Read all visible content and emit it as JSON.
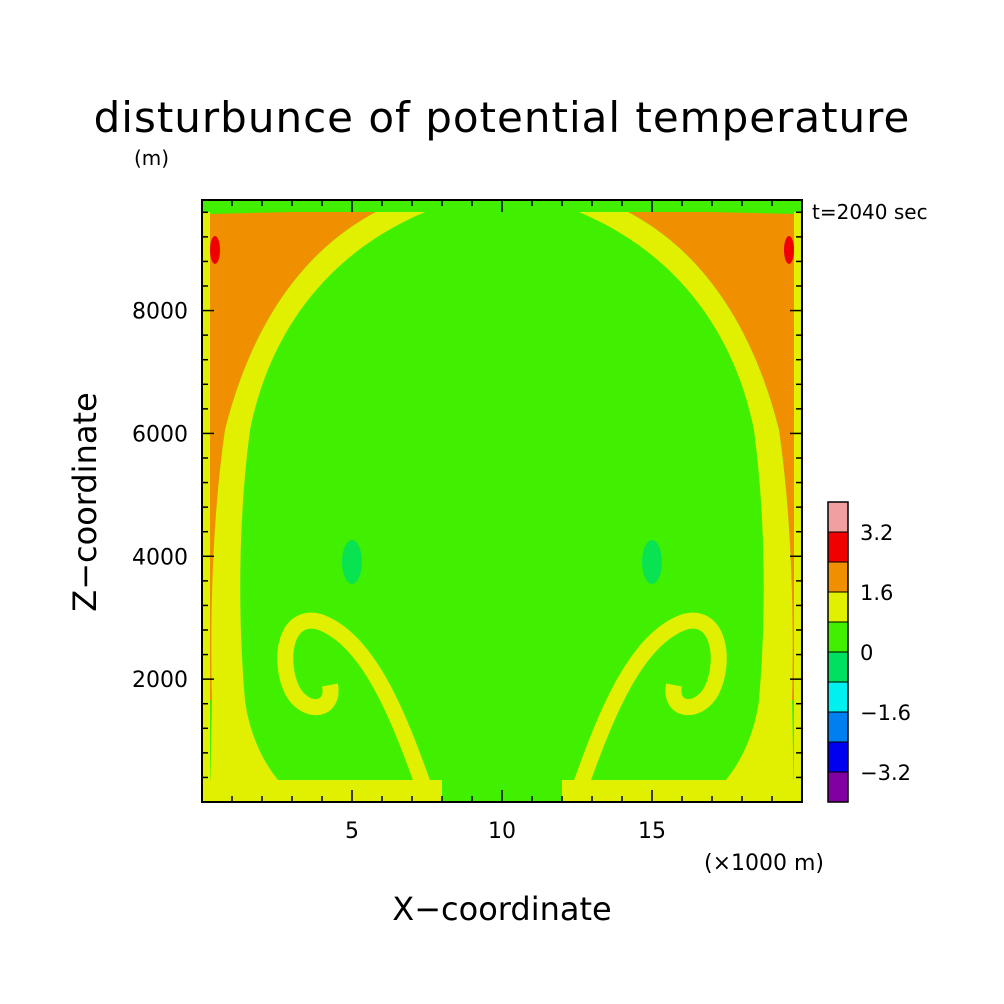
{
  "chart_data": {
    "type": "heatmap",
    "title": "disturbunce of potential temperature",
    "subtitle": "(m)",
    "time_label": "t=2040 sec",
    "xlabel": "X−coordinate",
    "ylabel": "Z−coordinate",
    "x_unit_label": "(×1000 m)",
    "xlim": [
      0,
      20
    ],
    "ylim": [
      0,
      9800
    ],
    "x_ticks": [
      5,
      10,
      15
    ],
    "x_tick_labels": [
      "5",
      "10",
      "15"
    ],
    "y_ticks": [
      2000,
      4000,
      6000,
      8000
    ],
    "y_tick_labels": [
      "2000",
      "4000",
      "6000",
      "8000"
    ],
    "colorbar": {
      "levels": [
        -4.0,
        -3.2,
        -2.4,
        -1.6,
        -0.8,
        0,
        0.8,
        1.6,
        2.4,
        3.2,
        4.0
      ],
      "colors": [
        "#8000a0",
        "#0000f0",
        "#0080f0",
        "#00f0f0",
        "#00e060",
        "#40f000",
        "#e0f000",
        "#f09000",
        "#f00000",
        "#f0a0a0"
      ],
      "tick_values": [
        -3.2,
        -1.6,
        0,
        1.6,
        3.2
      ],
      "tick_labels": [
        "−3.2",
        "−1.6",
        "0",
        "1.6",
        "3.2"
      ]
    },
    "field_regions": [
      {
        "region": "background interior",
        "value_range": [
          0,
          0.8
        ]
      },
      {
        "region": "outer side columns",
        "value_range": [
          1.6,
          2.4
        ]
      },
      {
        "region": "shell around warm plume and vortex rolls",
        "value_range": [
          0.8,
          1.6
        ]
      },
      {
        "region": "small spots near top corners",
        "value_range": [
          2.4,
          3.2
        ]
      },
      {
        "region": "small patches near z=4000 at x=5 and x=15",
        "value_range": [
          -0.8,
          0
        ]
      }
    ]
  }
}
